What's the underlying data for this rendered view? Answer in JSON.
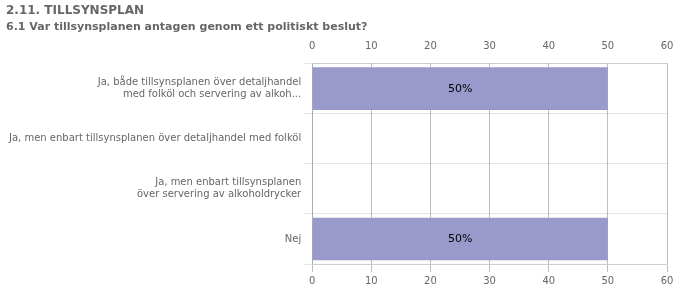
{
  "chart_data": {
    "type": "bar",
    "orientation": "horizontal",
    "title": "2.11. TILLSYNSPLAN",
    "subtitle": "6.1 Var tillsynsplanen antagen genom ett politiskt beslut?",
    "categories": [
      "Nej",
      "Ja, men enbart tillsynsplanen\növer servering av alkoholdrycker",
      "Ja, men enbart tillsynsplanen över detaljhandel med folköl",
      "Ja, både tillsynsplanen över detaljhandel\nmed folköl och servering av alkoh..."
    ],
    "values": [
      50,
      0,
      0,
      50
    ],
    "value_labels": [
      "50%",
      null,
      null,
      "50%"
    ],
    "color": "#9999cc",
    "xlim": [
      0,
      60
    ],
    "xticks": [
      0,
      10,
      20,
      30,
      40,
      50,
      60
    ],
    "grid": true,
    "data_labels": true
  }
}
